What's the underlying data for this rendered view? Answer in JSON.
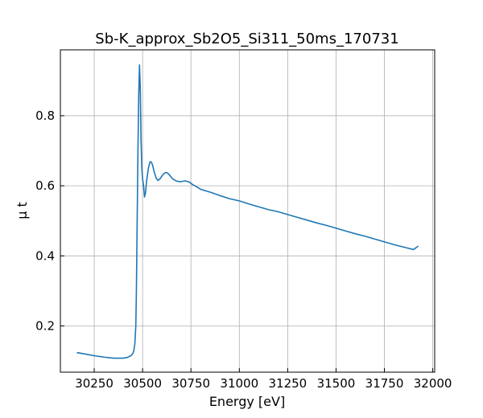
{
  "chart_data": {
    "type": "line",
    "title": "Sb-K_approx_Sb2O5_Si311_50ms_170731",
    "xlabel": "Energy [eV]",
    "ylabel": "μ t",
    "xlim": [
      30075,
      32010
    ],
    "ylim": [
      0.068,
      0.988
    ],
    "xticks": [
      30250,
      30500,
      30750,
      31000,
      31250,
      31500,
      31750,
      32000
    ],
    "yticks": [
      0.2,
      0.4,
      0.6,
      0.8
    ],
    "grid": true,
    "color": "#1f77b4",
    "series": [
      {
        "x": [
          30160,
          30200,
          30250,
          30300,
          30350,
          30400,
          30420,
          30440,
          30450,
          30455,
          30460,
          30465,
          30468,
          30472,
          30476,
          30480,
          30484,
          30488,
          30492,
          30496,
          30500,
          30505,
          30510,
          30515,
          30520,
          30530,
          30538,
          30545,
          30552,
          30560,
          30570,
          30580,
          30590,
          30600,
          30610,
          30620,
          30630,
          30640,
          30655,
          30670,
          30685,
          30700,
          30720,
          30740,
          30760,
          30780,
          30800,
          30830,
          30860,
          30900,
          30950,
          31000,
          31050,
          31100,
          31150,
          31200,
          31250,
          31300,
          31350,
          31400,
          31450,
          31500,
          31550,
          31600,
          31650,
          31700,
          31750,
          31800,
          31850,
          31900,
          31925
        ],
        "y": [
          0.124,
          0.12,
          0.115,
          0.111,
          0.108,
          0.108,
          0.11,
          0.115,
          0.122,
          0.13,
          0.15,
          0.2,
          0.3,
          0.5,
          0.7,
          0.86,
          0.945,
          0.88,
          0.73,
          0.65,
          0.62,
          0.6,
          0.568,
          0.58,
          0.61,
          0.65,
          0.668,
          0.668,
          0.658,
          0.64,
          0.622,
          0.615,
          0.62,
          0.628,
          0.635,
          0.638,
          0.636,
          0.63,
          0.62,
          0.615,
          0.612,
          0.612,
          0.614,
          0.611,
          0.603,
          0.597,
          0.59,
          0.585,
          0.58,
          0.572,
          0.563,
          0.557,
          0.548,
          0.54,
          0.532,
          0.526,
          0.518,
          0.51,
          0.502,
          0.494,
          0.487,
          0.479,
          0.471,
          0.463,
          0.456,
          0.448,
          0.44,
          0.432,
          0.425,
          0.418,
          0.428
        ]
      }
    ]
  }
}
